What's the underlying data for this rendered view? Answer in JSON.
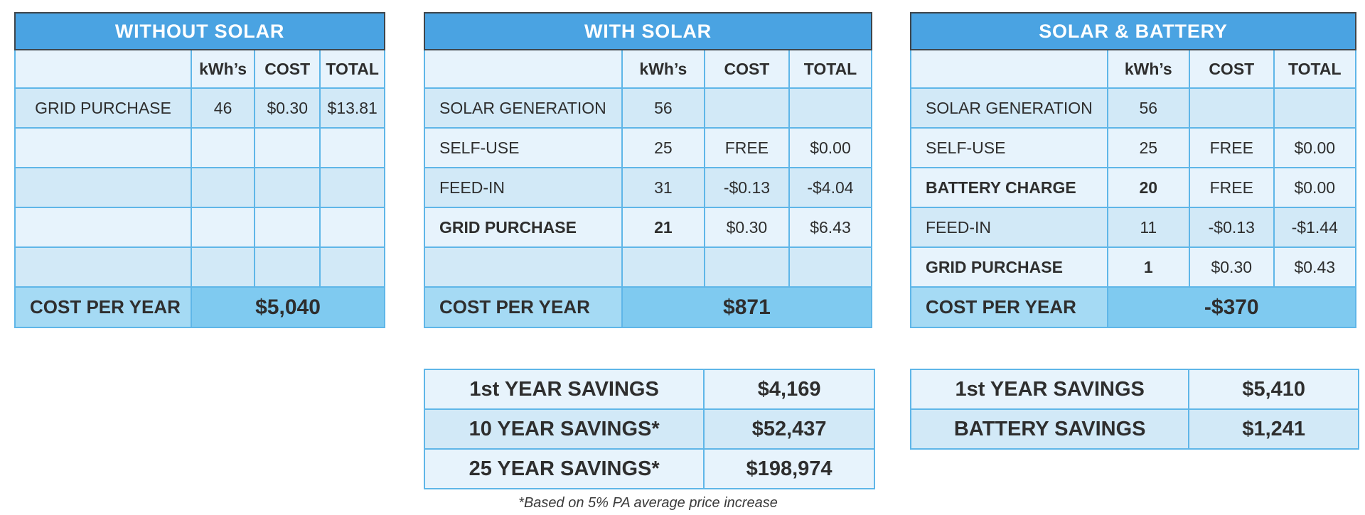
{
  "colors": {
    "header_blue": "#4aa3e2",
    "header_border": "#3e454b",
    "cell_border": "#5fb6e8",
    "row_light": "#e7f3fc",
    "row_dark": "#d2e9f7",
    "footer_label_bg": "#a5daf4",
    "footer_value_bg": "#7fcaf0",
    "text_dark": "#2e2e2e",
    "title_text": "#ffffff"
  },
  "tables": [
    {
      "title": "WITHOUT SOLAR",
      "columns": [
        "",
        "kWh’s",
        "COST",
        "TOTAL"
      ],
      "rows": [
        {
          "label": "GRID PURCHASE",
          "kwh": "46",
          "cost": "$0.30",
          "total": "$13.81",
          "bold": false,
          "shade": "dark"
        },
        {
          "label": "",
          "kwh": "",
          "cost": "",
          "total": "",
          "bold": false,
          "shade": "light"
        },
        {
          "label": "",
          "kwh": "",
          "cost": "",
          "total": "",
          "bold": false,
          "shade": "dark"
        },
        {
          "label": "",
          "kwh": "",
          "cost": "",
          "total": "",
          "bold": false,
          "shade": "light"
        },
        {
          "label": "",
          "kwh": "",
          "cost": "",
          "total": "",
          "bold": false,
          "shade": "dark"
        }
      ],
      "footer": {
        "label": "COST PER YEAR",
        "value": "$5,040"
      }
    },
    {
      "title": "WITH SOLAR",
      "columns": [
        "",
        "kWh’s",
        "COST",
        "TOTAL"
      ],
      "rows": [
        {
          "label": "SOLAR GENERATION",
          "kwh": "56",
          "cost": "",
          "total": "",
          "bold": false,
          "shade": "dark"
        },
        {
          "label": "SELF-USE",
          "kwh": "25",
          "cost": "FREE",
          "total": "$0.00",
          "bold": false,
          "shade": "light"
        },
        {
          "label": "FEED-IN",
          "kwh": "31",
          "cost": "-$0.13",
          "total": "-$4.04",
          "bold": false,
          "shade": "dark"
        },
        {
          "label": "GRID PURCHASE",
          "kwh": "21",
          "cost": "$0.30",
          "total": "$6.43",
          "bold": true,
          "shade": "light"
        },
        {
          "label": "",
          "kwh": "",
          "cost": "",
          "total": "",
          "bold": false,
          "shade": "dark"
        }
      ],
      "footer": {
        "label": "COST PER YEAR",
        "value": "$871"
      }
    },
    {
      "title": "SOLAR & BATTERY",
      "columns": [
        "",
        "kWh’s",
        "COST",
        "TOTAL"
      ],
      "rows": [
        {
          "label": "SOLAR GENERATION",
          "kwh": "56",
          "cost": "",
          "total": "",
          "bold": false,
          "shade": "dark"
        },
        {
          "label": "SELF-USE",
          "kwh": "25",
          "cost": "FREE",
          "total": "$0.00",
          "bold": false,
          "shade": "light"
        },
        {
          "label": "BATTERY CHARGE",
          "kwh": "20",
          "cost": "FREE",
          "total": "$0.00",
          "bold": true,
          "shade": "light"
        },
        {
          "label": "FEED-IN",
          "kwh": "11",
          "cost": "-$0.13",
          "total": "-$1.44",
          "bold": false,
          "shade": "dark"
        },
        {
          "label": "GRID PURCHASE",
          "kwh": "1",
          "cost": "$0.30",
          "total": "$0.43",
          "bold": true,
          "shade": "light"
        }
      ],
      "footer": {
        "label": "COST PER YEAR",
        "value": "-$370"
      }
    }
  ],
  "savings_tables": [
    {
      "rows": [
        {
          "label": "1st YEAR SAVINGS",
          "value": "$4,169",
          "shade": "light"
        },
        {
          "label": "10 YEAR SAVINGS*",
          "value": "$52,437",
          "shade": "dark"
        },
        {
          "label": "25 YEAR SAVINGS*",
          "value": "$198,974",
          "shade": "light"
        }
      ],
      "footnote": "*Based on 5% PA average price increase"
    },
    {
      "rows": [
        {
          "label": "1st YEAR SAVINGS",
          "value": "$5,410",
          "shade": "light"
        },
        {
          "label": "BATTERY SAVINGS",
          "value": "$1,241",
          "shade": "dark"
        }
      ]
    }
  ],
  "chart_data": [
    {
      "type": "table",
      "title": "WITHOUT SOLAR",
      "columns": [
        "",
        "kWh's",
        "COST",
        "TOTAL"
      ],
      "rows": [
        [
          "GRID PURCHASE",
          "46",
          "$0.30",
          "$13.81"
        ]
      ],
      "footer": [
        "COST PER YEAR",
        "$5,040"
      ]
    },
    {
      "type": "table",
      "title": "WITH SOLAR",
      "columns": [
        "",
        "kWh's",
        "COST",
        "TOTAL"
      ],
      "rows": [
        [
          "SOLAR GENERATION",
          "56",
          "",
          ""
        ],
        [
          "SELF-USE",
          "25",
          "FREE",
          "$0.00"
        ],
        [
          "FEED-IN",
          "31",
          "-$0.13",
          "-$4.04"
        ],
        [
          "GRID PURCHASE",
          "21",
          "$0.30",
          "$6.43"
        ]
      ],
      "footer": [
        "COST PER YEAR",
        "$871"
      ]
    },
    {
      "type": "table",
      "title": "SOLAR & BATTERY",
      "columns": [
        "",
        "kWh's",
        "COST",
        "TOTAL"
      ],
      "rows": [
        [
          "SOLAR GENERATION",
          "56",
          "",
          ""
        ],
        [
          "SELF-USE",
          "25",
          "FREE",
          "$0.00"
        ],
        [
          "BATTERY CHARGE",
          "20",
          "FREE",
          "$0.00"
        ],
        [
          "FEED-IN",
          "11",
          "-$0.13",
          "-$1.44"
        ],
        [
          "GRID PURCHASE",
          "1",
          "$0.30",
          "$0.43"
        ]
      ],
      "footer": [
        "COST PER YEAR",
        "-$370"
      ]
    },
    {
      "type": "table",
      "rows": [
        [
          "1st YEAR SAVINGS",
          "$4,169"
        ],
        [
          "10 YEAR SAVINGS*",
          "$52,437"
        ],
        [
          "25 YEAR SAVINGS*",
          "$198,974"
        ]
      ],
      "note": "*Based on 5% PA average price increase"
    },
    {
      "type": "table",
      "rows": [
        [
          "1st YEAR SAVINGS",
          "$5,410"
        ],
        [
          "BATTERY SAVINGS",
          "$1,241"
        ]
      ]
    }
  ]
}
